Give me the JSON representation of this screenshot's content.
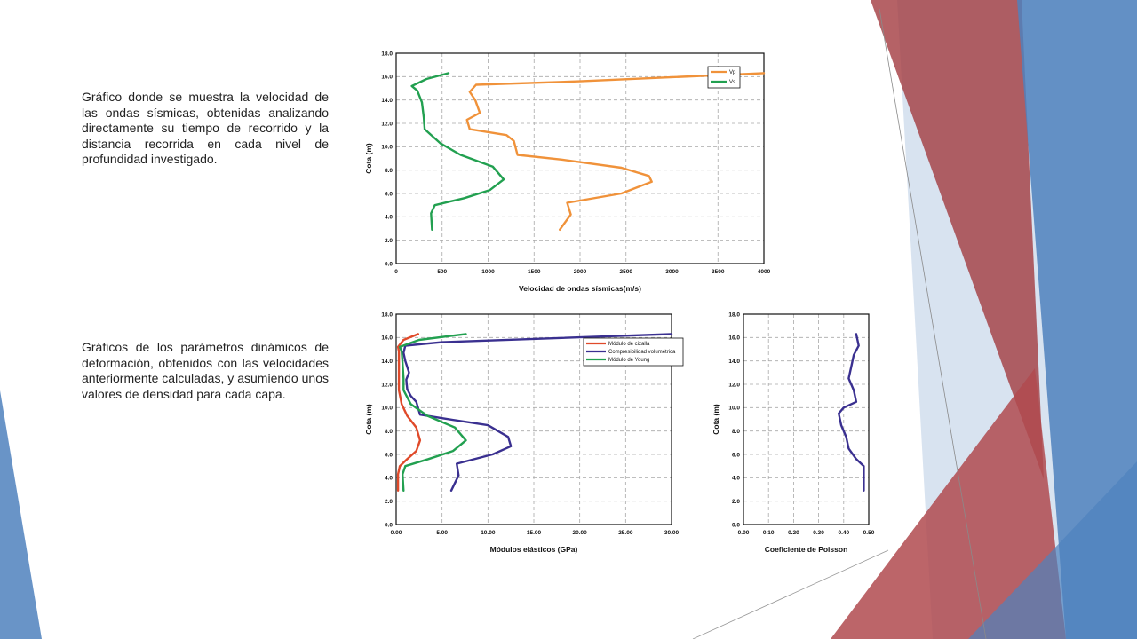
{
  "slide": {
    "description_1": "Gráfico donde se muestra la velocidad de las ondas sísmicas, obtenidas analizando directamente su tiempo de recorrido y la distancia recorrida en cada nivel de profundidad investigado.",
    "description_2": "Gráficos de los parámetros dinámicos de deformación, obtenidos con las velocidades anteriormente calculadas, y asumiendo unos valores de densidad para cada capa."
  },
  "theme": {
    "red": "#b04a4f",
    "blue": "#4f81bd",
    "light_blue": "#b8cce4",
    "orange": "#f0923a",
    "green": "#22a050",
    "purple": "#3a3090",
    "red_line": "#e04a2a"
  },
  "chart_data": [
    {
      "type": "line",
      "xlabel": "Velocidad de ondas sísmicas(m/s)",
      "ylabel": "Cota (m)",
      "xlim": [
        0,
        4000
      ],
      "ylim": [
        0,
        18
      ],
      "x_ticks": [
        "0",
        "500",
        "1000",
        "1500",
        "2000",
        "2500",
        "3000",
        "3500",
        "4000"
      ],
      "y_ticks": [
        "0.0",
        "2.0",
        "4.0",
        "6.0",
        "8.0",
        "10.0",
        "12.0",
        "14.0",
        "16.0",
        "18.0"
      ],
      "grid": true,
      "legend": "top-right",
      "series": [
        {
          "name": "Vp",
          "color": "#f0923a",
          "points": [
            [
              1780,
              2.9
            ],
            [
              1900,
              4.2
            ],
            [
              1860,
              5.2
            ],
            [
              2450,
              6.0
            ],
            [
              2780,
              7.0
            ],
            [
              2750,
              7.5
            ],
            [
              2450,
              8.2
            ],
            [
              1800,
              8.9
            ],
            [
              1320,
              9.3
            ],
            [
              1280,
              10.5
            ],
            [
              1200,
              11.0
            ],
            [
              800,
              11.5
            ],
            [
              770,
              12.3
            ],
            [
              910,
              12.9
            ],
            [
              860,
              14.0
            ],
            [
              800,
              14.7
            ],
            [
              870,
              15.3
            ],
            [
              2000,
              15.6
            ],
            [
              4000,
              16.3
            ]
          ]
        },
        {
          "name": "Vs",
          "color": "#22a050",
          "points": [
            [
              390,
              2.9
            ],
            [
              380,
              4.3
            ],
            [
              420,
              5.0
            ],
            [
              740,
              5.6
            ],
            [
              1020,
              6.3
            ],
            [
              1170,
              7.2
            ],
            [
              1050,
              8.3
            ],
            [
              700,
              9.3
            ],
            [
              480,
              10.3
            ],
            [
              310,
              11.5
            ],
            [
              300,
              12.5
            ],
            [
              280,
              13.8
            ],
            [
              230,
              14.8
            ],
            [
              170,
              15.2
            ],
            [
              330,
              15.8
            ],
            [
              570,
              16.3
            ]
          ]
        }
      ]
    },
    {
      "type": "line",
      "xlabel": "Módulos elásticos (GPa)",
      "ylabel": "Cota (m)",
      "xlim": [
        0,
        30
      ],
      "ylim": [
        0,
        18
      ],
      "x_ticks": [
        "0.00",
        "5.00",
        "10.00",
        "15.00",
        "20.00",
        "25.00",
        "30.00"
      ],
      "y_ticks": [
        "0.0",
        "2.0",
        "4.0",
        "6.0",
        "8.0",
        "10.0",
        "12.0",
        "14.0",
        "16.0",
        "18.0"
      ],
      "grid": true,
      "legend": "top-right",
      "series": [
        {
          "name": "Módulo de cizalla",
          "color": "#e04a2a",
          "points": [
            [
              0.2,
              2.9
            ],
            [
              0.2,
              4.3
            ],
            [
              0.4,
              5.0
            ],
            [
              1.2,
              5.6
            ],
            [
              2.2,
              6.3
            ],
            [
              2.6,
              7.2
            ],
            [
              2.2,
              8.3
            ],
            [
              1.2,
              9.3
            ],
            [
              0.6,
              10.3
            ],
            [
              0.3,
              11.5
            ],
            [
              0.3,
              12.5
            ],
            [
              0.3,
              13.8
            ],
            [
              0.3,
              14.8
            ],
            [
              0.2,
              15.2
            ],
            [
              0.8,
              15.8
            ],
            [
              2.4,
              16.3
            ]
          ]
        },
        {
          "name": "Compresibilidad volumétrica",
          "color": "#3a3090",
          "points": [
            [
              6.0,
              2.9
            ],
            [
              6.8,
              4.2
            ],
            [
              6.6,
              5.2
            ],
            [
              10.5,
              6.0
            ],
            [
              12.5,
              6.7
            ],
            [
              12.2,
              7.5
            ],
            [
              10.0,
              8.5
            ],
            [
              5.0,
              9.1
            ],
            [
              2.6,
              9.4
            ],
            [
              2.2,
              10.5
            ],
            [
              1.6,
              11.0
            ],
            [
              1.2,
              11.6
            ],
            [
              1.1,
              12.4
            ],
            [
              1.4,
              13.0
            ],
            [
              1.0,
              14.0
            ],
            [
              0.8,
              14.7
            ],
            [
              1.0,
              15.3
            ],
            [
              5.0,
              15.6
            ],
            [
              30.0,
              16.3
            ]
          ]
        },
        {
          "name": "Módulo de Young",
          "color": "#22a050",
          "points": [
            [
              0.8,
              2.9
            ],
            [
              0.7,
              4.3
            ],
            [
              1.0,
              5.0
            ],
            [
              3.5,
              5.6
            ],
            [
              6.2,
              6.3
            ],
            [
              7.6,
              7.2
            ],
            [
              6.4,
              8.3
            ],
            [
              3.4,
              9.3
            ],
            [
              1.6,
              10.3
            ],
            [
              0.8,
              11.5
            ],
            [
              0.8,
              12.5
            ],
            [
              0.7,
              13.8
            ],
            [
              0.6,
              14.8
            ],
            [
              0.4,
              15.2
            ],
            [
              2.5,
              15.8
            ],
            [
              7.6,
              16.3
            ]
          ]
        }
      ]
    },
    {
      "type": "line",
      "xlabel": "Coeficiente de Poisson",
      "ylabel": "Cota (m)",
      "xlim": [
        0,
        0.5
      ],
      "ylim": [
        0,
        18
      ],
      "x_ticks": [
        "0.00",
        "0.10",
        "0.20",
        "0.30",
        "0.40",
        "0.50"
      ],
      "y_ticks": [
        "0.0",
        "2.0",
        "4.0",
        "6.0",
        "8.0",
        "10.0",
        "12.0",
        "14.0",
        "16.0",
        "18.0"
      ],
      "grid": true,
      "legend": "none",
      "series": [
        {
          "color": "#3a3090",
          "points": [
            [
              0.48,
              2.9
            ],
            [
              0.48,
              4.2
            ],
            [
              0.48,
              5.0
            ],
            [
              0.45,
              5.6
            ],
            [
              0.42,
              6.5
            ],
            [
              0.41,
              7.5
            ],
            [
              0.39,
              8.5
            ],
            [
              0.38,
              9.5
            ],
            [
              0.4,
              10.0
            ],
            [
              0.45,
              10.5
            ],
            [
              0.44,
              11.5
            ],
            [
              0.42,
              12.5
            ],
            [
              0.43,
              13.5
            ],
            [
              0.44,
              14.5
            ],
            [
              0.46,
              15.3
            ],
            [
              0.45,
              16.3
            ]
          ]
        }
      ]
    }
  ]
}
